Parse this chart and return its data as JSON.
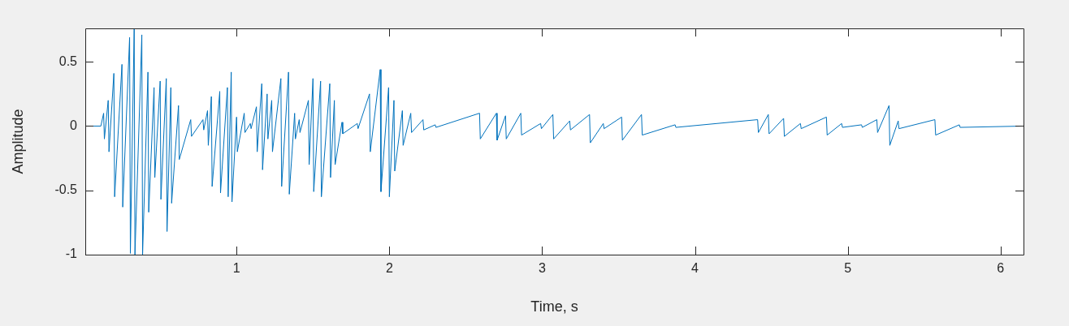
{
  "chart_data": {
    "type": "line",
    "xlabel": "Time, s",
    "ylabel": "Amplitude",
    "series": [
      {
        "color": "#0072bd",
        "x": [
          0.01,
          0.112,
          0.13,
          0.135,
          0.16,
          0.165,
          0.197,
          0.202,
          0.25,
          0.255,
          0.3,
          0.305,
          0.33,
          0.335,
          0.38,
          0.385,
          0.42,
          0.425,
          0.46,
          0.465,
          0.5,
          0.505,
          0.54,
          0.545,
          0.57,
          0.575,
          0.62,
          0.625,
          0.7,
          0.705,
          0.78,
          0.785,
          0.81,
          0.815,
          0.835,
          0.84,
          0.89,
          0.895,
          0.94,
          0.945,
          0.965,
          0.97,
          1.0,
          1.005,
          1.05,
          1.055,
          1.09,
          1.095,
          1.13,
          1.135,
          1.165,
          1.17,
          1.2,
          1.205,
          1.23,
          1.235,
          1.29,
          1.295,
          1.34,
          1.345,
          1.38,
          1.385,
          1.41,
          1.415,
          1.47,
          1.475,
          1.5,
          1.505,
          1.55,
          1.555,
          1.61,
          1.615,
          1.64,
          1.645,
          1.69,
          1.695,
          1.79,
          1.795,
          1.87,
          1.875,
          1.94,
          1.945,
          1.995,
          2.0,
          2.03,
          2.035,
          2.085,
          2.09,
          2.14,
          2.145,
          2.22,
          2.225,
          2.3,
          2.305,
          2.59,
          2.595,
          2.7,
          2.705,
          2.76,
          2.765,
          2.86,
          2.865,
          2.99,
          2.995,
          3.07,
          3.075,
          3.18,
          3.185,
          3.31,
          3.315,
          3.4,
          3.405,
          3.52,
          3.525,
          3.65,
          3.655,
          3.87,
          3.875,
          4.41,
          4.415,
          4.48,
          4.485,
          4.58,
          4.585,
          4.69,
          4.695,
          4.86,
          4.865,
          4.96,
          4.965,
          5.09,
          5.095,
          5.19,
          5.195,
          5.27,
          5.275,
          5.33,
          5.335,
          5.57,
          5.575,
          5.73,
          5.735,
          6.15
        ],
        "values": [
          0,
          0,
          0.1,
          -0.1,
          0.2,
          -0.2,
          0.41,
          -0.55,
          0.48,
          -0.63,
          0.69,
          -0.99,
          0.76,
          -1,
          0.71,
          -1,
          0.42,
          -0.67,
          0.3,
          -0.4,
          0.35,
          -0.57,
          0.37,
          -0.82,
          0.3,
          -0.6,
          0.16,
          -0.26,
          0.05,
          -0.08,
          0.05,
          -0.03,
          0.12,
          -0.15,
          0.23,
          -0.47,
          0.27,
          -0.52,
          0.3,
          -0.55,
          0.42,
          -0.59,
          0.07,
          -0.2,
          0.1,
          -0.05,
          0.02,
          -0.02,
          0.15,
          -0.2,
          0.33,
          -0.34,
          0.25,
          -0.1,
          0.2,
          -0.2,
          0.37,
          -0.47,
          0.42,
          -0.53,
          0.1,
          -0.1,
          0.05,
          -0.05,
          0.2,
          -0.3,
          0.37,
          -0.51,
          0.35,
          -0.55,
          0.33,
          -0.4,
          0.2,
          -0.3,
          0.03,
          -0.06,
          0.02,
          -0.02,
          0.25,
          -0.2,
          0.44,
          -0.51,
          0.3,
          -0.55,
          0.2,
          -0.35,
          0.12,
          -0.15,
          0.1,
          -0.05,
          0.05,
          -0.03,
          0.01,
          -0.01,
          0.1,
          -0.1,
          0.1,
          -0.11,
          0.08,
          -0.1,
          0.1,
          -0.07,
          0.02,
          -0.02,
          0.09,
          -0.1,
          0.04,
          -0.03,
          0.09,
          -0.13,
          0.02,
          -0.02,
          0.07,
          -0.11,
          0.09,
          -0.07,
          0.01,
          -0.01,
          0.05,
          -0.05,
          0.09,
          -0.06,
          0.06,
          -0.08,
          0.02,
          -0.02,
          0.07,
          -0.07,
          0.02,
          -0.01,
          0.01,
          -0.01,
          0.05,
          -0.05,
          0.16,
          -0.15,
          0.04,
          -0.02,
          0.05,
          -0.07,
          0.01,
          -0.01,
          0
        ]
      }
    ],
    "xlim": [
      0.01,
      6.15
    ],
    "xticks": [
      1,
      2,
      3,
      4,
      5,
      6
    ],
    "ylim": [
      -1,
      0.76
    ],
    "yticks": [
      -1,
      -0.5,
      0,
      0.5
    ]
  }
}
